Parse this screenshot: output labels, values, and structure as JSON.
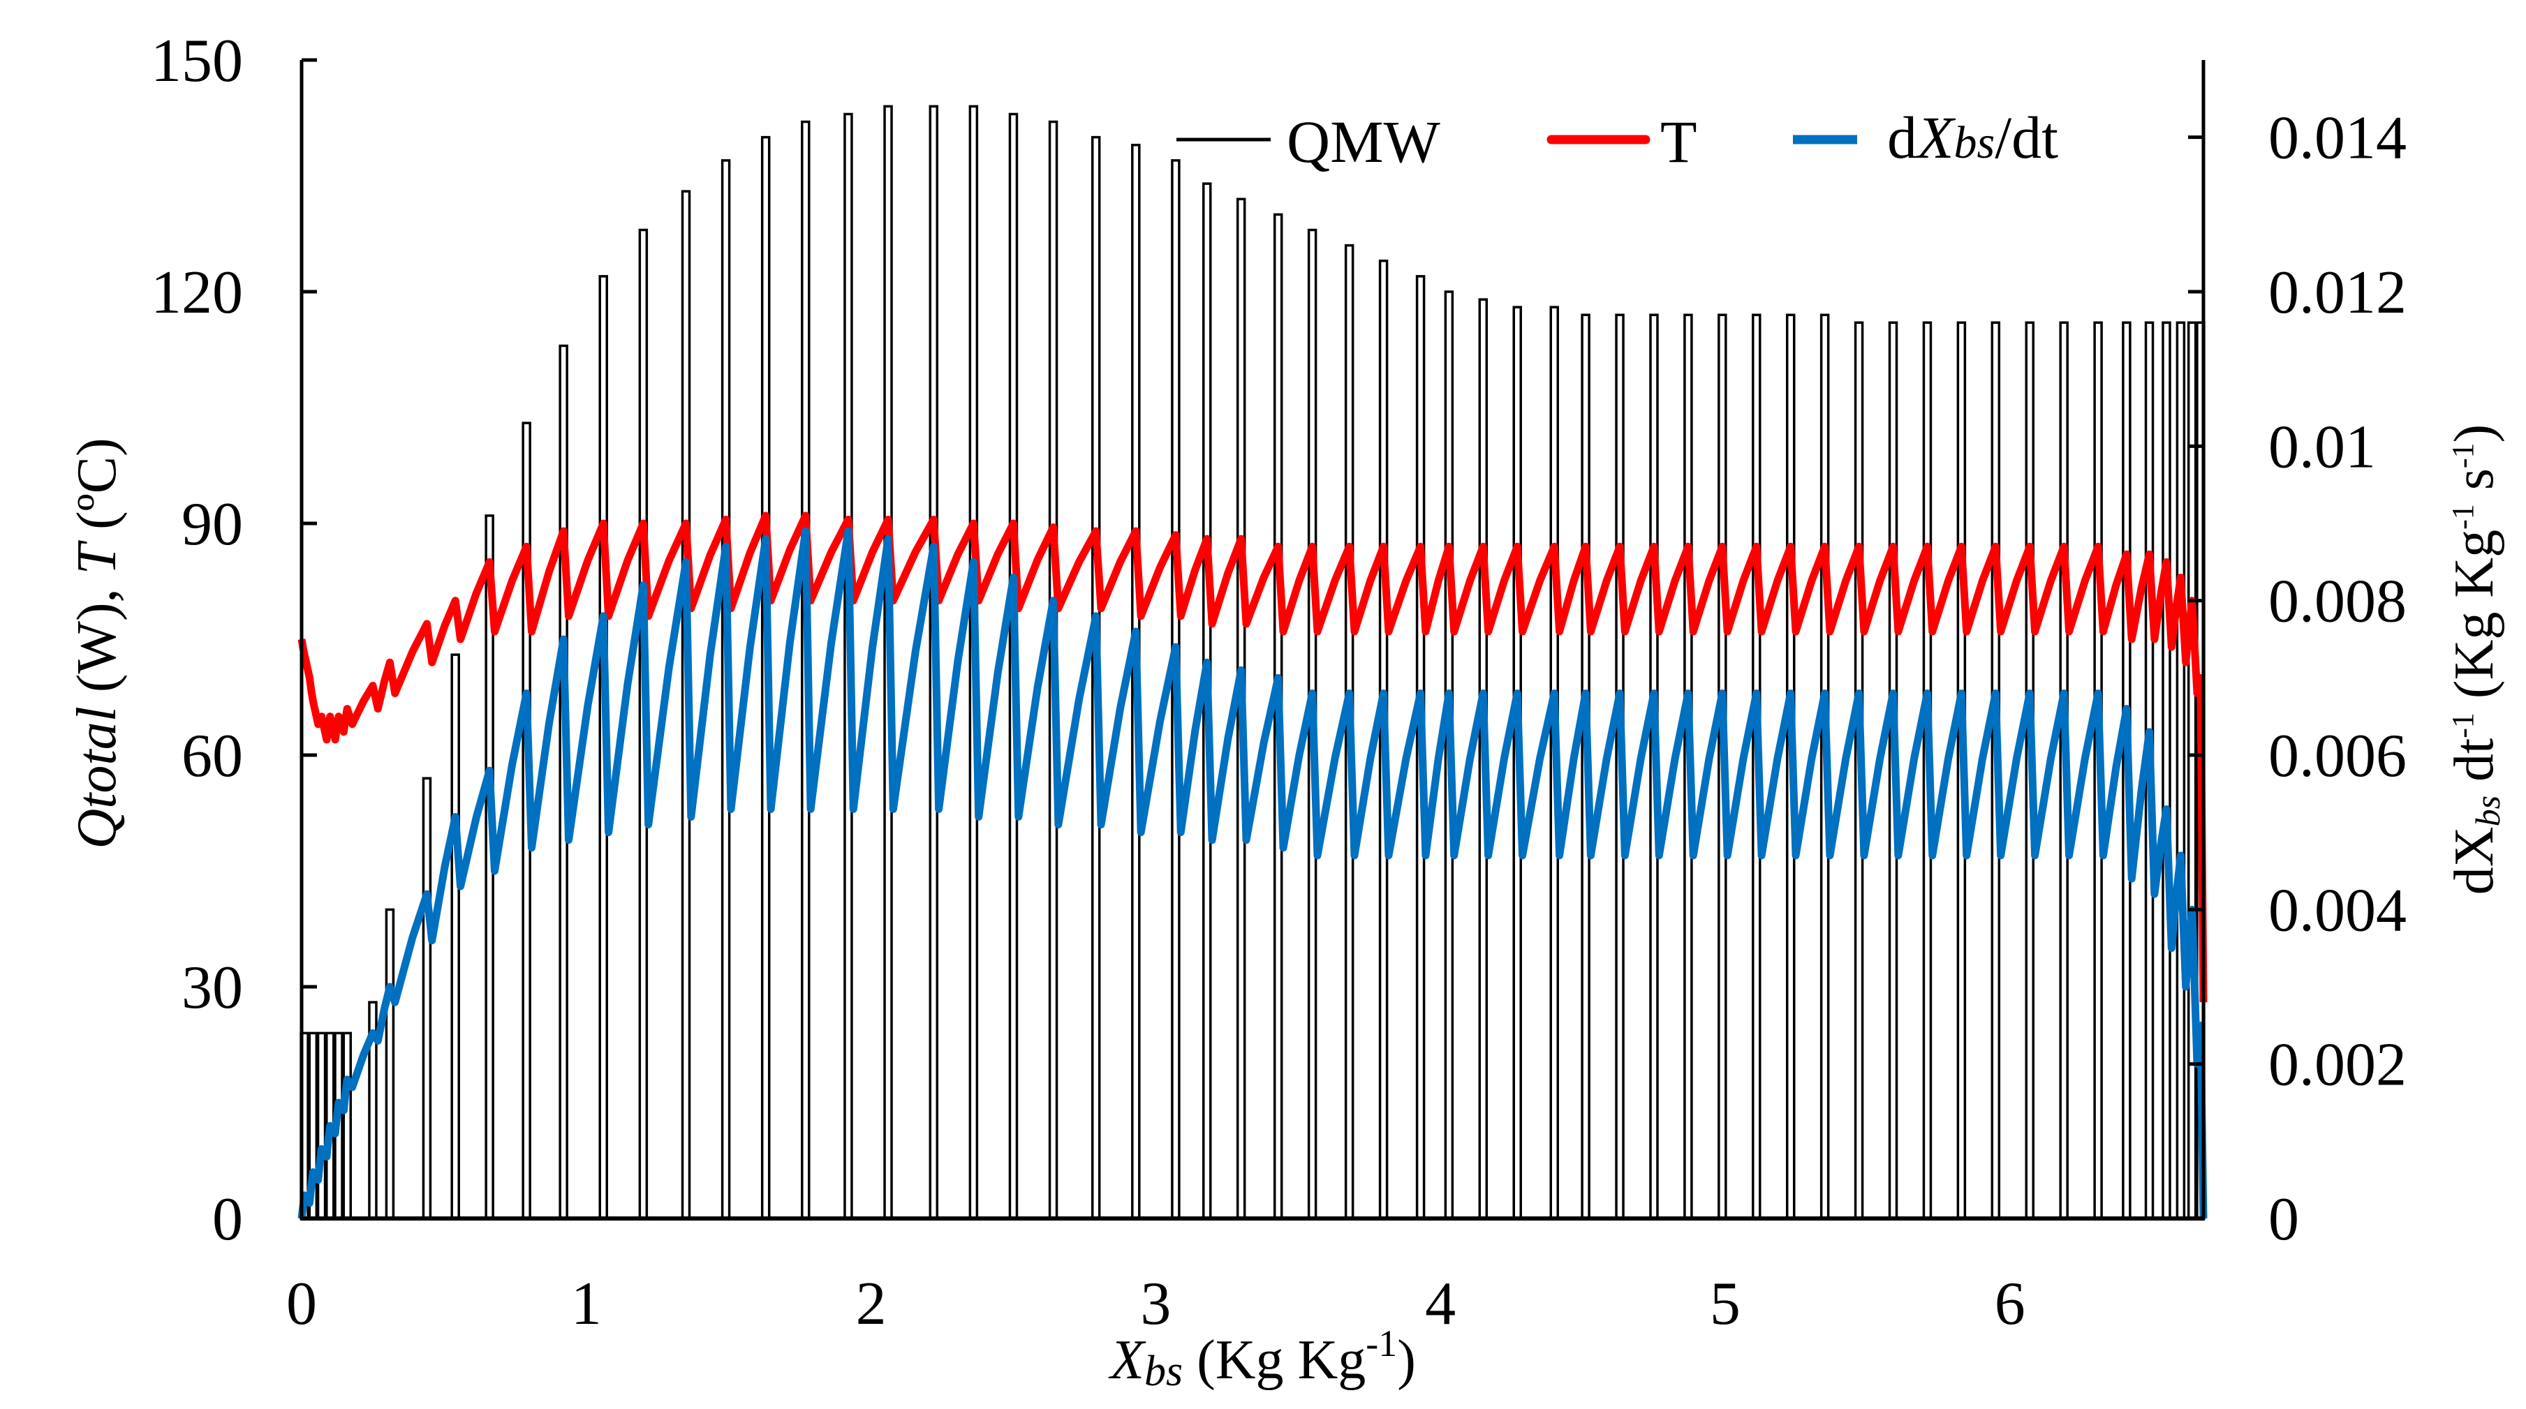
{
  "chart_data": {
    "type": "line",
    "xlabel": {
      "main": "X",
      "sub": "bs",
      "rest": " (Kg Kg",
      "sup": "-1",
      "end": ")"
    },
    "ylabel_left": {
      "q": "Qtotal",
      "w": " (W), ",
      "t": "T",
      "unit": " (ºC)"
    },
    "ylabel_right": {
      "d": "dX",
      "sub": "bs",
      "dt": " dt",
      "sup": "-1",
      "rest": " (Kg Kg",
      "sup2": "-1",
      "s": " s",
      "sup3": "-1",
      "end": ")"
    },
    "xlim": [
      0,
      6.68
    ],
    "ylim_left": [
      0,
      150
    ],
    "ylim_right": [
      0,
      0.015
    ],
    "x_ticks": [
      "0",
      "1",
      "2",
      "3",
      "4",
      "5",
      "6"
    ],
    "y_left_ticks": [
      "0",
      "30",
      "60",
      "90",
      "120",
      "150"
    ],
    "y_right_ticks": [
      "0",
      "0.002",
      "0.004",
      "0.006",
      "0.008",
      "0.01",
      "0.012",
      "0.014"
    ],
    "grid": false,
    "legend": {
      "placement": "top-right",
      "items": [
        {
          "label": "QMW",
          "color": "#000000"
        },
        {
          "label": "T",
          "color": "#ff0000"
        },
        {
          "label_d": "d",
          "label_x": "X",
          "label_sub": "bs",
          "label_rest": "/dt",
          "color": "#0070c0"
        }
      ]
    },
    "series": [
      {
        "name": "QMW",
        "axis": "left",
        "color": "#000000",
        "style": "pulses",
        "x": [
          0.01,
          0.04,
          0.07,
          0.1,
          0.13,
          0.16,
          0.25,
          0.31,
          0.44,
          0.54,
          0.66,
          0.79,
          0.92,
          1.06,
          1.2,
          1.35,
          1.49,
          1.63,
          1.77,
          1.92,
          2.06,
          2.22,
          2.36,
          2.5,
          2.64,
          2.79,
          2.93,
          3.07,
          3.18,
          3.3,
          3.43,
          3.55,
          3.68,
          3.8,
          3.93,
          4.03,
          4.15,
          4.27,
          4.4,
          4.51,
          4.63,
          4.75,
          4.87,
          4.99,
          5.11,
          5.23,
          5.35,
          5.47,
          5.59,
          5.71,
          5.83,
          5.95,
          6.07,
          6.19,
          6.31,
          6.41,
          6.49,
          6.55,
          6.6,
          6.64,
          6.67
        ],
        "peak": [
          24,
          24,
          24,
          24,
          24,
          24,
          28,
          40,
          57,
          73,
          91,
          103,
          113,
          122,
          128,
          133,
          137,
          140,
          142,
          143,
          144,
          144,
          144,
          143,
          142,
          140,
          139,
          137,
          134,
          132,
          130,
          128,
          126,
          124,
          122,
          120,
          119,
          118,
          118,
          117,
          117,
          117,
          117,
          117,
          117,
          117,
          117,
          116,
          116,
          116,
          116,
          116,
          116,
          116,
          116,
          116,
          116,
          116,
          116,
          116,
          116
        ]
      },
      {
        "name": "T",
        "axis": "left",
        "color": "#ff0000",
        "start": 75,
        "peak": [
          73,
          67,
          65,
          65,
          65,
          66,
          69,
          72,
          77,
          80,
          85,
          87,
          89,
          90,
          90,
          90,
          90.5,
          91,
          91,
          90.5,
          90.5,
          90.5,
          90,
          90,
          89.5,
          89,
          89,
          88.5,
          88,
          88,
          87,
          87,
          87,
          87,
          87,
          87,
          87,
          87,
          87,
          87,
          87,
          87,
          87,
          87,
          87,
          87,
          87,
          87,
          87,
          87,
          87,
          87,
          87,
          87,
          87,
          86,
          86,
          85,
          83,
          80,
          70
        ],
        "trough": [
          70,
          64,
          62,
          62,
          63,
          64,
          66,
          68,
          72,
          75,
          76,
          76,
          78,
          78,
          78,
          79,
          79,
          80,
          80,
          80,
          80,
          80,
          80,
          79,
          79,
          79,
          78,
          78,
          77,
          77,
          76,
          76,
          76,
          76,
          76,
          76,
          76,
          76,
          76,
          76,
          76,
          76,
          76,
          76,
          76,
          76,
          76,
          76,
          76,
          76,
          76,
          76,
          76,
          76,
          76,
          75,
          75,
          74,
          72,
          68,
          28
        ]
      },
      {
        "name": "dXbs/dt",
        "axis": "right",
        "color": "#0070c0",
        "start": 0,
        "peak": [
          0.0003,
          0.0006,
          0.0009,
          0.0012,
          0.0015,
          0.0018,
          0.0024,
          0.003,
          0.0042,
          0.0052,
          0.0058,
          0.0068,
          0.0075,
          0.0078,
          0.0082,
          0.0085,
          0.0087,
          0.0088,
          0.0089,
          0.0089,
          0.0088,
          0.0087,
          0.0085,
          0.0083,
          0.008,
          0.0078,
          0.0076,
          0.0074,
          0.0072,
          0.0071,
          0.007,
          0.0068,
          0.0068,
          0.0068,
          0.0068,
          0.0068,
          0.0068,
          0.0068,
          0.0068,
          0.0068,
          0.0068,
          0.0068,
          0.0068,
          0.0068,
          0.0068,
          0.0068,
          0.0068,
          0.0068,
          0.0068,
          0.0068,
          0.0068,
          0.0068,
          0.0068,
          0.0068,
          0.0068,
          0.0066,
          0.0063,
          0.0053,
          0.0047,
          0.004,
          0.0025
        ],
        "trough": [
          0.0002,
          0.0005,
          0.0008,
          0.0011,
          0.0014,
          0.0017,
          0.0023,
          0.0028,
          0.0036,
          0.0043,
          0.0045,
          0.0048,
          0.0049,
          0.005,
          0.0051,
          0.0052,
          0.0053,
          0.0053,
          0.0053,
          0.0053,
          0.0053,
          0.0053,
          0.0052,
          0.0052,
          0.0051,
          0.0051,
          0.005,
          0.005,
          0.0049,
          0.0049,
          0.0048,
          0.0047,
          0.0047,
          0.0047,
          0.0047,
          0.0047,
          0.0047,
          0.0047,
          0.0047,
          0.0047,
          0.0047,
          0.0047,
          0.0047,
          0.0047,
          0.0047,
          0.0047,
          0.0047,
          0.0047,
          0.0047,
          0.0047,
          0.0047,
          0.0047,
          0.0047,
          0.0047,
          0.0047,
          0.0044,
          0.0042,
          0.0035,
          0.003,
          0.002,
          0
        ]
      }
    ]
  }
}
